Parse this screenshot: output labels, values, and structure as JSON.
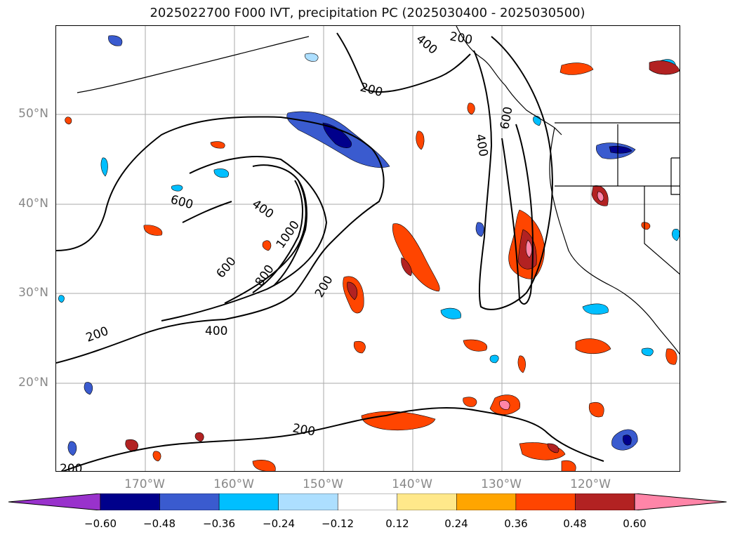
{
  "title": "2025022700 F000 IVT, precipitation PC (2025030400 - 2025030500)",
  "map": {
    "lat_labels": [
      "50°N",
      "40°N",
      "30°N",
      "20°N"
    ],
    "lon_labels": [
      "170°W",
      "160°W",
      "150°W",
      "140°W",
      "130°W",
      "120°W"
    ],
    "contour_labels": [
      "200",
      "200",
      "200",
      "200",
      "200",
      "200",
      "400",
      "400",
      "400",
      "400",
      "600",
      "600",
      "600",
      "800",
      "1000"
    ]
  },
  "colorbar": {
    "ticks": [
      "−0.60",
      "−0.48",
      "−0.36",
      "−0.24",
      "−0.12",
      "0.12",
      "0.24",
      "0.36",
      "0.48",
      "0.60"
    ],
    "colors": [
      "#9932CC",
      "#00008B",
      "#3A5BCF",
      "#00BFFF",
      "#ADDFFF",
      "#FFFFFF",
      "#FFE88A",
      "#FFA500",
      "#FF4500",
      "#B22222",
      "#FF85A8"
    ]
  }
}
